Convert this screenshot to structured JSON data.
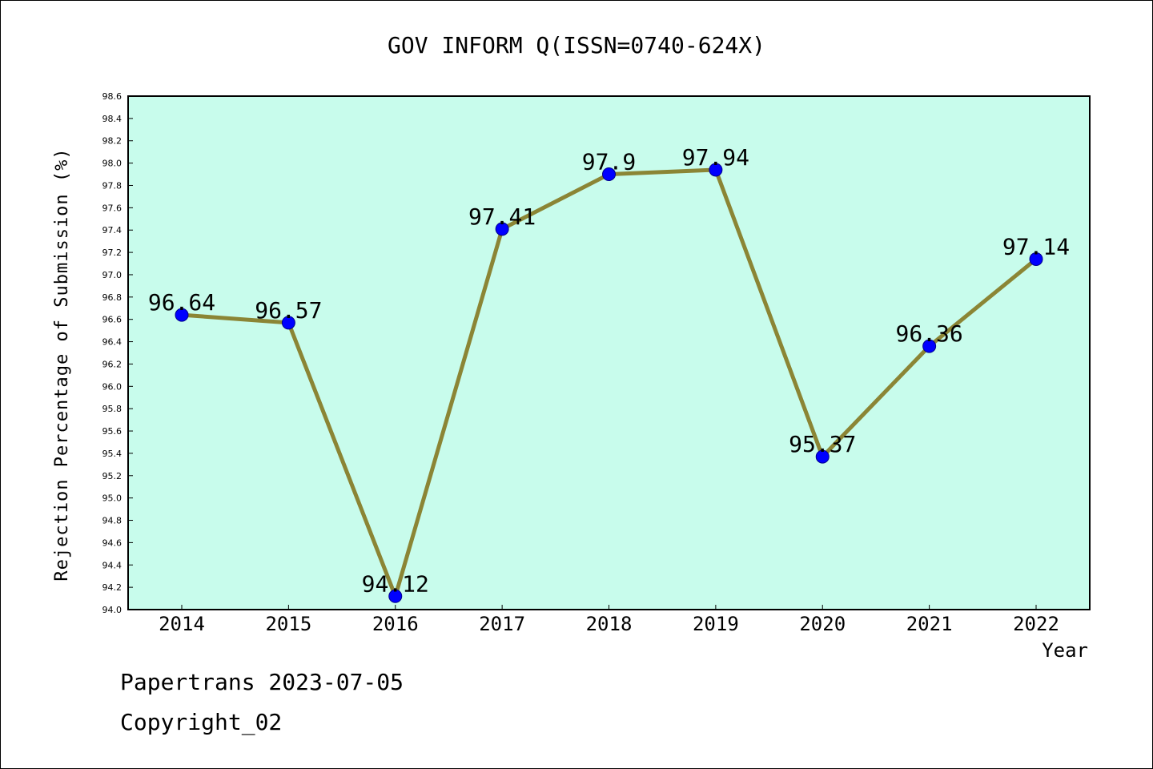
{
  "chart_data": {
    "type": "line",
    "title": "GOV INFORM Q(ISSN=0740-624X)",
    "xlabel": "Year",
    "ylabel": "Rejection Percentage of Submission (%)",
    "categories": [
      "2014",
      "2015",
      "2016",
      "2017",
      "2018",
      "2019",
      "2020",
      "2021",
      "2022"
    ],
    "values": [
      96.64,
      96.57,
      94.12,
      97.41,
      97.9,
      97.94,
      95.37,
      96.36,
      97.14
    ],
    "data_labels": [
      "96.64",
      "96.57",
      "94.12",
      "97.41",
      "97.9",
      "97.94",
      "95.37",
      "96.36",
      "97.14"
    ],
    "ylim": [
      94.0,
      98.6
    ],
    "yticks": [
      "94.0",
      "94.2",
      "94.4",
      "94.6",
      "94.8",
      "95.0",
      "95.2",
      "95.4",
      "95.6",
      "95.8",
      "96.0",
      "96.2",
      "96.4",
      "96.6",
      "96.8",
      "97.0",
      "97.2",
      "97.4",
      "97.6",
      "97.8",
      "98.0",
      "98.2",
      "98.4",
      "98.6"
    ],
    "grid": false,
    "colors": {
      "plot_background": "#c8fcec",
      "line": "#8b8535",
      "marker": "#0000ff"
    }
  },
  "footer": {
    "line1": "Papertrans 2023-07-05",
    "line2": "Copyright_02"
  }
}
